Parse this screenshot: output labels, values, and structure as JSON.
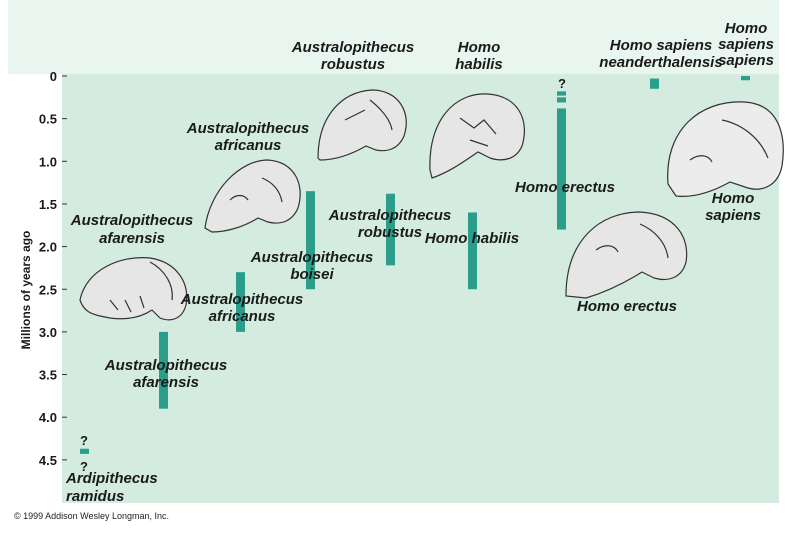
{
  "chart_data": {
    "type": "bar",
    "orientation": "vertical-ranges",
    "ylabel": "Millions of years ago",
    "yticks": [
      "0",
      "0.5",
      "1.0",
      "1.5",
      "2.0",
      "2.5",
      "3.0",
      "3.5",
      "4.0",
      "4.5"
    ],
    "ylim": [
      0,
      4.9
    ],
    "y_inverted": true,
    "grid": false,
    "colors": {
      "bar": "#2a9e8b",
      "plot_bg": "#d3ecdf",
      "header_bg": "#e9f6ef"
    },
    "ranges": [
      {
        "name": "Ardipithecus ramidus",
        "label_lines": [
          "Ardipithecus",
          "ramidus"
        ],
        "start": 4.37,
        "end": 4.43,
        "uncertain_top": true,
        "uncertain_bottom": true
      },
      {
        "name": "Australopithecus afarensis",
        "label_lines": [
          "Australopithecus",
          "afarensis"
        ],
        "start": 3.0,
        "end": 3.9
      },
      {
        "name": "Australopithecus africanus",
        "label_lines": [
          "Australopithecus",
          "africanus"
        ],
        "start": 2.3,
        "end": 3.0
      },
      {
        "name": "Australopithecus boisei",
        "label_lines": [
          "Australopithecus",
          "boisei"
        ],
        "start": 1.35,
        "end": 2.5
      },
      {
        "name": "Australopithecus robustus",
        "label_lines": [
          "Australopithecus",
          "robustus"
        ],
        "start": 1.38,
        "end": 2.22
      },
      {
        "name": "Homo habilis",
        "label_lines": [
          "Homo habilis"
        ],
        "start": 1.6,
        "end": 2.5
      },
      {
        "name": "Homo erectus",
        "label_lines": [
          "Homo erectus"
        ],
        "start": 0.38,
        "end": 1.8,
        "extra_segments": [
          [
            0.18,
            0.23
          ],
          [
            0.25,
            0.31
          ]
        ],
        "uncertain_top": true
      },
      {
        "name": "Homo sapiens neanderthalensis",
        "label_lines": [
          "Homo sapiens",
          "neanderthalensis"
        ],
        "start": 0.03,
        "end": 0.15
      },
      {
        "name": "Homo sapiens sapiens",
        "label_lines": [
          "Homo",
          "sapiens",
          "sapiens"
        ],
        "start": 0.0,
        "end": 0.05
      }
    ],
    "skull_labels": [
      {
        "name": "Australopithecus afarensis skull",
        "label_lines": [
          "Australopithecus",
          "afarensis"
        ]
      },
      {
        "name": "Australopithecus africanus skull",
        "label_lines": [
          "Australopithecus",
          "africanus"
        ]
      },
      {
        "name": "Australopithecus robustus skull",
        "label_lines": [
          "Australopithecus",
          "robustus"
        ]
      },
      {
        "name": "Homo habilis skull",
        "label_lines": [
          "Homo",
          "habilis"
        ]
      },
      {
        "name": "Homo erectus skull",
        "label_lines": [
          "Homo erectus"
        ]
      },
      {
        "name": "Homo sapiens skull",
        "label_lines": [
          "Homo",
          "sapiens"
        ]
      }
    ],
    "uncertainty_mark": "?"
  },
  "copyright": "© 1999 Addison Wesley Longman, Inc."
}
